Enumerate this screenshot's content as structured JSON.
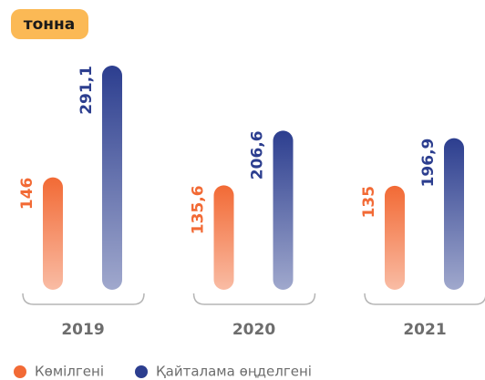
{
  "chart_data": {
    "type": "bar",
    "title": "тонна",
    "categories": [
      "2019",
      "2020",
      "2021"
    ],
    "series": [
      {
        "name": "Көмілгені",
        "color": "#f26a35",
        "values": [
          146,
          135.6,
          135
        ],
        "value_labels": [
          "146",
          "135,6",
          "135"
        ]
      },
      {
        "name": "Қайталама өңделгені",
        "color": "#2c3e8f",
        "values": [
          291.1,
          206.6,
          196.9
        ],
        "value_labels": [
          "291,1",
          "206,6",
          "196,9"
        ]
      }
    ]
  }
}
